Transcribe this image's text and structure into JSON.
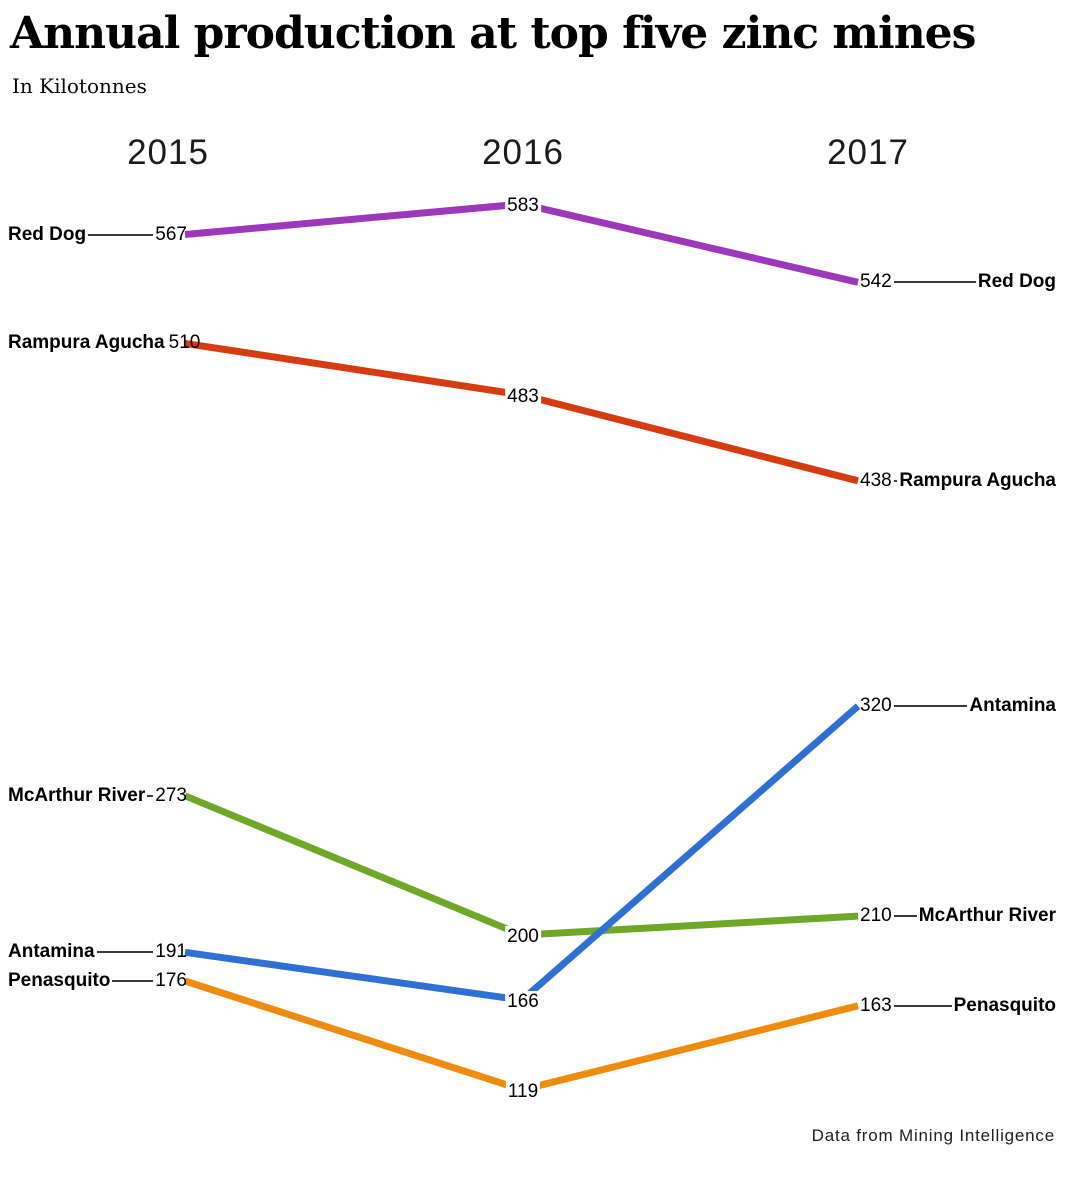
{
  "header": {
    "title": "Annual production at top five zinc mines",
    "subtitle": "In Kilotonnes"
  },
  "footer": {
    "source": "Data from Mining Intelligence"
  },
  "chart_data": {
    "type": "line",
    "title": "Annual production at top five zinc mines",
    "subtitle": "In Kilotonnes",
    "x": [
      "2015",
      "2016",
      "2017"
    ],
    "series": [
      {
        "name": "Red Dog",
        "color": "#9d37bb",
        "values": [
          567,
          583,
          542
        ]
      },
      {
        "name": "Rampura Agucha",
        "color": "#d63c10",
        "values": [
          510,
          483,
          438
        ]
      },
      {
        "name": "McArthur River",
        "color": "#6ea828",
        "values": [
          273,
          200,
          210
        ]
      },
      {
        "name": "Antamina",
        "color": "#2e71d4",
        "values": [
          191,
          166,
          320
        ]
      },
      {
        "name": "Penasquito",
        "color": "#ef8c10",
        "values": [
          176,
          119,
          163
        ]
      }
    ],
    "value_labels": true,
    "grid": false,
    "legend_position": "inline-left-right",
    "ylim": [
      119,
      583
    ],
    "source": "Data from Mining Intelligence"
  }
}
